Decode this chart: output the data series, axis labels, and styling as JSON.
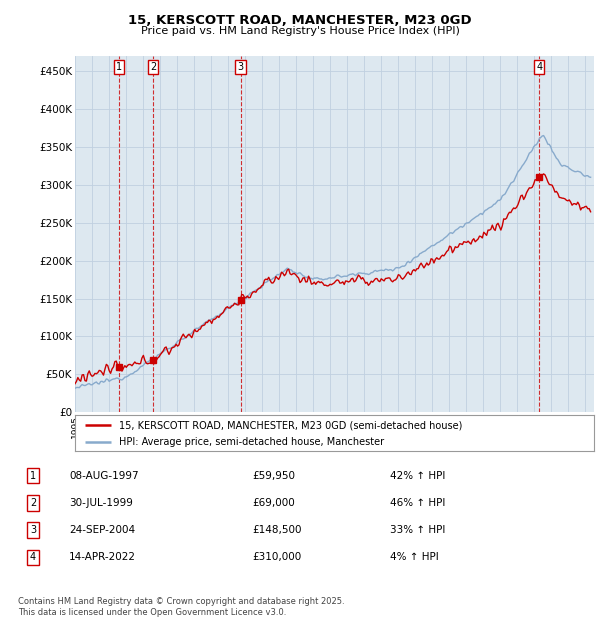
{
  "title": "15, KERSCOTT ROAD, MANCHESTER, M23 0GD",
  "subtitle": "Price paid vs. HM Land Registry's House Price Index (HPI)",
  "ylabel_ticks": [
    "£0",
    "£50K",
    "£100K",
    "£150K",
    "£200K",
    "£250K",
    "£300K",
    "£350K",
    "£400K",
    "£450K"
  ],
  "ytick_values": [
    0,
    50000,
    100000,
    150000,
    200000,
    250000,
    300000,
    350000,
    400000,
    450000
  ],
  "ylim": [
    0,
    470000
  ],
  "xlim_start": 1995.0,
  "xlim_end": 2025.5,
  "sale_dates": [
    1997.6,
    1999.58,
    2004.73,
    2022.28
  ],
  "sale_prices": [
    59950,
    69000,
    148500,
    310000
  ],
  "sale_labels": [
    "1",
    "2",
    "3",
    "4"
  ],
  "legend_line1": "15, KERSCOTT ROAD, MANCHESTER, M23 0GD (semi-detached house)",
  "legend_line2": "HPI: Average price, semi-detached house, Manchester",
  "table_entries": [
    {
      "num": "1",
      "date": "08-AUG-1997",
      "price": "£59,950",
      "hpi": "42% ↑ HPI"
    },
    {
      "num": "2",
      "date": "30-JUL-1999",
      "price": "£69,000",
      "hpi": "46% ↑ HPI"
    },
    {
      "num": "3",
      "date": "24-SEP-2004",
      "price": "£148,500",
      "hpi": "33% ↑ HPI"
    },
    {
      "num": "4",
      "date": "14-APR-2022",
      "price": "£310,000",
      "hpi": "4% ↑ HPI"
    }
  ],
  "footnote": "Contains HM Land Registry data © Crown copyright and database right 2025.\nThis data is licensed under the Open Government Licence v3.0.",
  "line_color_red": "#cc0000",
  "line_color_blue": "#88aacc",
  "chart_bg": "#dde8f0",
  "grid_color": "#c0d0e0",
  "background_color": "#ffffff"
}
